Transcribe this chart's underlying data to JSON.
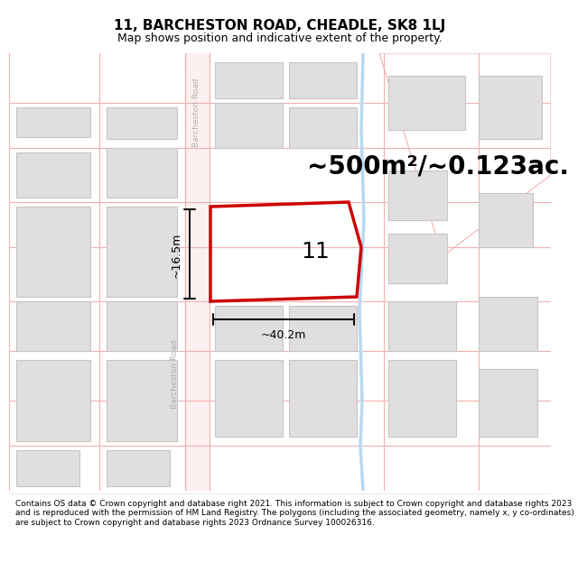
{
  "title": "11, BARCHESTON ROAD, CHEADLE, SK8 1LJ",
  "subtitle": "Map shows position and indicative extent of the property.",
  "area_text": "~500m²/~0.123ac.",
  "number_label": "11",
  "width_label": "~40.2m",
  "height_label": "~16.5m",
  "footer": "Contains OS data © Crown copyright and database right 2021. This information is subject to Crown copyright and database rights 2023 and is reproduced with the permission of HM Land Registry. The polygons (including the associated geometry, namely x, y co-ordinates) are subject to Crown copyright and database rights 2023 Ordnance Survey 100026316.",
  "map_bg": "#ffffff",
  "road_line_color": "#f0b0b0",
  "road_fill_color": "#fce8e8",
  "building_fill": "#e0dede",
  "building_stroke": "#c8c4c4",
  "highlight_stroke": "#cc0000",
  "road_text_color": "#b0b0b0",
  "water_color": "#b8d8f0",
  "dim_line_color": "#111111",
  "title_fontsize": 11,
  "subtitle_fontsize": 9,
  "area_fontsize": 20,
  "number_fontsize": 18,
  "dim_fontsize": 9,
  "footer_fontsize": 6.5
}
